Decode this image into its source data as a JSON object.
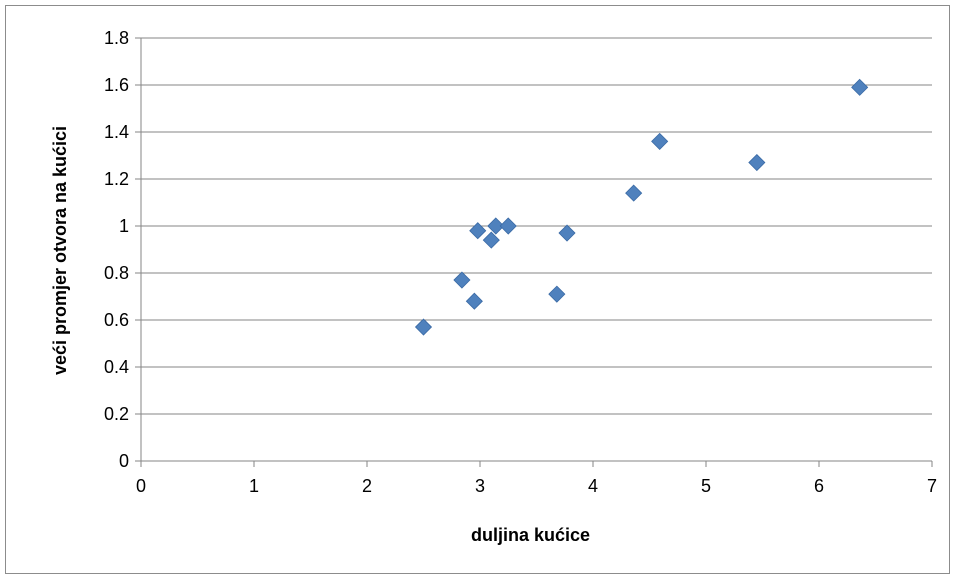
{
  "chart_data": {
    "type": "scatter",
    "title": "",
    "xlabel": "duljina kućice",
    "ylabel": "veći promjer otvora na kućici",
    "xlim": [
      0,
      7
    ],
    "ylim": [
      0,
      1.8
    ],
    "x_ticks": [
      "0",
      "1",
      "2",
      "3",
      "4",
      "5",
      "6",
      "7"
    ],
    "y_ticks": [
      "0",
      "0.2",
      "0.4",
      "0.6",
      "0.8",
      "1",
      "1.2",
      "1.4",
      "1.6",
      "1.8"
    ],
    "grid": "horizontal",
    "marker": "diamond",
    "marker_color": "#4f81bd",
    "series": [
      {
        "points": [
          [
            2.5,
            0.57
          ],
          [
            2.84,
            0.77
          ],
          [
            2.95,
            0.68
          ],
          [
            2.98,
            0.98
          ],
          [
            3.1,
            0.94
          ],
          [
            3.14,
            1.0
          ],
          [
            3.25,
            1.0
          ],
          [
            3.68,
            0.71
          ],
          [
            3.77,
            0.97
          ],
          [
            4.36,
            1.14
          ],
          [
            4.59,
            1.36
          ],
          [
            5.45,
            1.27
          ],
          [
            6.36,
            1.59
          ]
        ]
      }
    ]
  }
}
